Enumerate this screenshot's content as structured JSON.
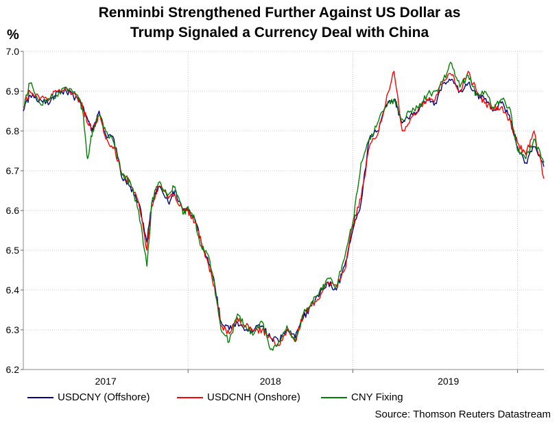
{
  "chart_data": {
    "type": "line",
    "title_lines": [
      "Renminbi Strengthened Further Against US Dollar as",
      "Trump Signaled a Currency Deal with China"
    ],
    "ylabel": "%",
    "ylim": [
      6.2,
      7.0
    ],
    "yticks": [
      "6.2",
      "6.3",
      "6.4",
      "6.5",
      "6.6",
      "6.7",
      "6.8",
      "6.9",
      "7.0"
    ],
    "x_range": [
      2016.0,
      2019.16
    ],
    "x_year_boundaries": [
      2017,
      2018,
      2019
    ],
    "x_tick_labels": [
      {
        "label": "2017",
        "x": 2016.5
      },
      {
        "label": "2018",
        "x": 2017.5
      },
      {
        "label": "2019",
        "x": 2018.58
      }
    ],
    "grid": true,
    "series": [
      {
        "name": "USDCNY (Offshore)",
        "color": "#000080",
        "x": [
          2016.0,
          2016.04,
          2016.1,
          2016.16,
          2016.2,
          2016.26,
          2016.33,
          2016.36,
          2016.39,
          2016.42,
          2016.46,
          2016.5,
          2016.55,
          2016.6,
          2016.65,
          2016.7,
          2016.75,
          2016.78,
          2016.82,
          2016.88,
          2016.92,
          2016.97,
          2017.0,
          2017.04,
          2017.08,
          2017.12,
          2017.16,
          2017.2,
          2017.25,
          2017.3,
          2017.35,
          2017.4,
          2017.45,
          2017.5,
          2017.55,
          2017.6,
          2017.65,
          2017.7,
          2017.75,
          2017.8,
          2017.85,
          2017.9,
          2017.95,
          2018.0,
          2018.05,
          2018.1,
          2018.15,
          2018.2,
          2018.25,
          2018.3,
          2018.35,
          2018.4,
          2018.45,
          2018.5,
          2018.55,
          2018.6,
          2018.65,
          2018.7,
          2018.75,
          2018.8,
          2018.85,
          2018.9,
          2018.95,
          2019.0,
          2019.05,
          2019.1,
          2019.16
        ],
        "values": [
          6.85,
          6.89,
          6.88,
          6.87,
          6.9,
          6.9,
          6.88,
          6.86,
          6.83,
          6.8,
          6.85,
          6.79,
          6.78,
          6.68,
          6.66,
          6.62,
          6.52,
          6.62,
          6.66,
          6.62,
          6.65,
          6.6,
          6.6,
          6.58,
          6.52,
          6.48,
          6.42,
          6.32,
          6.3,
          6.32,
          6.3,
          6.3,
          6.31,
          6.28,
          6.27,
          6.3,
          6.28,
          6.33,
          6.36,
          6.39,
          6.42,
          6.4,
          6.46,
          6.55,
          6.62,
          6.78,
          6.8,
          6.86,
          6.88,
          6.82,
          6.84,
          6.85,
          6.88,
          6.87,
          6.92,
          6.93,
          6.9,
          6.92,
          6.89,
          6.88,
          6.85,
          6.87,
          6.84,
          6.76,
          6.72,
          6.76,
          6.71
        ]
      },
      {
        "name": "USDCNH (Onshore)",
        "color": "#ff0000",
        "x": [
          2016.0,
          2016.04,
          2016.1,
          2016.16,
          2016.2,
          2016.26,
          2016.33,
          2016.36,
          2016.39,
          2016.42,
          2016.46,
          2016.5,
          2016.55,
          2016.6,
          2016.65,
          2016.7,
          2016.75,
          2016.78,
          2016.82,
          2016.88,
          2016.92,
          2016.97,
          2017.0,
          2017.04,
          2017.08,
          2017.12,
          2017.16,
          2017.2,
          2017.25,
          2017.3,
          2017.35,
          2017.4,
          2017.45,
          2017.5,
          2017.55,
          2017.6,
          2017.65,
          2017.7,
          2017.75,
          2017.8,
          2017.85,
          2017.9,
          2017.95,
          2018.0,
          2018.05,
          2018.1,
          2018.15,
          2018.2,
          2018.25,
          2018.3,
          2018.35,
          2018.4,
          2018.45,
          2018.5,
          2018.55,
          2018.6,
          2018.65,
          2018.7,
          2018.75,
          2018.8,
          2018.85,
          2018.9,
          2018.95,
          2019.0,
          2019.05,
          2019.1,
          2019.16
        ],
        "values": [
          6.86,
          6.9,
          6.88,
          6.88,
          6.9,
          6.91,
          6.88,
          6.86,
          6.82,
          6.8,
          6.84,
          6.78,
          6.76,
          6.69,
          6.67,
          6.62,
          6.5,
          6.61,
          6.66,
          6.63,
          6.64,
          6.6,
          6.6,
          6.57,
          6.52,
          6.47,
          6.41,
          6.31,
          6.29,
          6.33,
          6.31,
          6.3,
          6.3,
          6.28,
          6.26,
          6.3,
          6.27,
          6.34,
          6.36,
          6.38,
          6.42,
          6.41,
          6.45,
          6.56,
          6.63,
          6.76,
          6.79,
          6.87,
          6.95,
          6.8,
          6.83,
          6.86,
          6.88,
          6.88,
          6.93,
          6.94,
          6.9,
          6.95,
          6.9,
          6.87,
          6.86,
          6.86,
          6.83,
          6.77,
          6.74,
          6.8,
          6.68
        ]
      },
      {
        "name": "CNY Fixing",
        "color": "#008000",
        "x": [
          2016.0,
          2016.04,
          2016.1,
          2016.16,
          2016.2,
          2016.26,
          2016.33,
          2016.36,
          2016.39,
          2016.42,
          2016.46,
          2016.5,
          2016.55,
          2016.6,
          2016.65,
          2016.7,
          2016.75,
          2016.78,
          2016.82,
          2016.88,
          2016.92,
          2016.97,
          2017.0,
          2017.04,
          2017.08,
          2017.12,
          2017.16,
          2017.2,
          2017.25,
          2017.3,
          2017.35,
          2017.4,
          2017.45,
          2017.5,
          2017.55,
          2017.6,
          2017.65,
          2017.7,
          2017.75,
          2017.8,
          2017.85,
          2017.9,
          2017.95,
          2018.0,
          2018.05,
          2018.1,
          2018.15,
          2018.2,
          2018.25,
          2018.3,
          2018.35,
          2018.4,
          2018.45,
          2018.5,
          2018.55,
          2018.6,
          2018.65,
          2018.7,
          2018.75,
          2018.8,
          2018.85,
          2018.9,
          2018.95,
          2019.0,
          2019.05,
          2019.1,
          2019.16
        ],
        "values": [
          6.86,
          6.92,
          6.87,
          6.88,
          6.89,
          6.91,
          6.89,
          6.85,
          6.73,
          6.8,
          6.84,
          6.8,
          6.77,
          6.69,
          6.67,
          6.6,
          6.46,
          6.62,
          6.67,
          6.64,
          6.66,
          6.59,
          6.61,
          6.58,
          6.51,
          6.49,
          6.42,
          6.3,
          6.27,
          6.34,
          6.31,
          6.29,
          6.32,
          6.25,
          6.27,
          6.31,
          6.27,
          6.34,
          6.37,
          6.4,
          6.43,
          6.41,
          6.48,
          6.57,
          6.72,
          6.78,
          6.82,
          6.86,
          6.88,
          6.83,
          6.85,
          6.86,
          6.89,
          6.9,
          6.93,
          6.97,
          6.91,
          6.94,
          6.89,
          6.9,
          6.86,
          6.88,
          6.86,
          6.75,
          6.73,
          6.78,
          6.72
        ]
      }
    ]
  },
  "legend": [
    {
      "label": "USDCNY (Offshore)",
      "color": "#000080"
    },
    {
      "label": "USDCNH (Onshore)",
      "color": "#ff0000"
    },
    {
      "label": "CNY Fixing",
      "color": "#008000"
    }
  ],
  "source": "Source: Thomson Reuters Datastream"
}
